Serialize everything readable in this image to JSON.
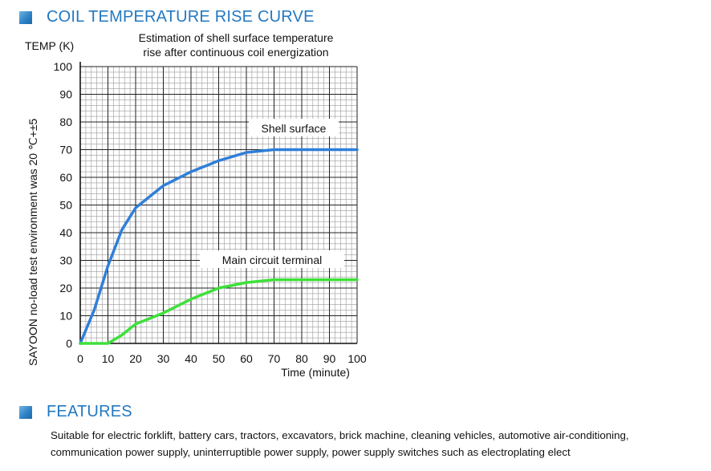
{
  "sections": {
    "curve_heading": "COIL TEMPERATURE RISE CURVE",
    "features_heading": "FEATURES"
  },
  "features": {
    "line1": "Suitable for electric forklift, battery cars, tractors, excavators, brick machine, cleaning vehicles, automotive air-conditioning,",
    "line2": "communication power supply, uninterruptible power supply, power supply switches such as electroplating elect"
  },
  "chart_data": {
    "type": "line",
    "title": "Estimation of shell surface temperature rise after continuous coil energization",
    "title_lines": [
      "Estimation of shell surface temperature",
      "rise after continuous coil energization"
    ],
    "ylabel": "TEMP (K)",
    "xlabel": "Time (minute)",
    "side_note": "SAYOON no-load test environment was 20 ℃+±5",
    "xlim": [
      0,
      100
    ],
    "ylim": [
      0,
      100
    ],
    "x_ticks": [
      0,
      10,
      20,
      30,
      40,
      50,
      60,
      70,
      80,
      90,
      100
    ],
    "y_ticks": [
      0,
      10,
      20,
      30,
      40,
      50,
      60,
      70,
      80,
      90,
      100
    ],
    "grid": true,
    "series": [
      {
        "name": "Shell surface",
        "color": "#2f7fd8",
        "x": [
          0,
          5,
          10,
          15,
          20,
          25,
          30,
          40,
          50,
          60,
          70,
          80,
          90,
          100
        ],
        "y": [
          0,
          12,
          28,
          41,
          49,
          53,
          57,
          62,
          66,
          69,
          70,
          70,
          70,
          70
        ]
      },
      {
        "name": "Main circuit terminal",
        "color": "#3ee03a",
        "x": [
          0,
          5,
          10,
          15,
          20,
          30,
          40,
          50,
          60,
          70,
          80,
          90,
          100
        ],
        "y": [
          0,
          0,
          0,
          3,
          7,
          11,
          16,
          20,
          22,
          23,
          23,
          23,
          23
        ]
      }
    ]
  }
}
